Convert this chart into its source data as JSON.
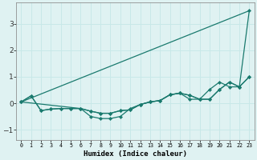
{
  "xlabel": "Humidex (Indice chaleur)",
  "bg_color": "#dff2f2",
  "grid_color": "#c8e8e8",
  "line_color": "#1a7a6e",
  "xlim": [
    -0.5,
    23.5
  ],
  "ylim": [
    -1.4,
    3.8
  ],
  "yticks": [
    -1,
    0,
    1,
    2,
    3
  ],
  "xtick_labels": [
    "0",
    "1",
    "2",
    "3",
    "4",
    "5",
    "6",
    "7",
    "8",
    "9",
    "10",
    "11",
    "12",
    "13",
    "14",
    "15",
    "16",
    "17",
    "18",
    "19",
    "20",
    "21",
    "22",
    "23"
  ],
  "series1_x": [
    0,
    1,
    2,
    3,
    4,
    5,
    6,
    7,
    8,
    9,
    10,
    11,
    12,
    13,
    14,
    15,
    16,
    17,
    18,
    19,
    20,
    21,
    22,
    23
  ],
  "series1_y": [
    0.05,
    0.28,
    -0.28,
    -0.22,
    -0.2,
    -0.2,
    -0.2,
    -0.3,
    -0.38,
    -0.38,
    -0.28,
    -0.25,
    -0.05,
    0.05,
    0.1,
    0.32,
    0.38,
    0.3,
    0.15,
    0.15,
    0.52,
    0.8,
    0.62,
    1.0
  ],
  "series2_x": [
    0,
    1,
    2,
    3,
    4,
    5,
    6,
    7,
    8,
    9,
    10,
    11,
    12,
    13,
    14,
    15,
    16,
    17,
    18,
    19,
    20,
    21,
    22,
    23
  ],
  "series2_y": [
    0.05,
    0.28,
    -0.28,
    -0.22,
    -0.2,
    -0.2,
    -0.2,
    -0.5,
    -0.58,
    -0.58,
    -0.5,
    -0.2,
    -0.05,
    0.05,
    0.1,
    0.32,
    0.38,
    0.15,
    0.15,
    0.52,
    0.8,
    0.62,
    0.62,
    1.0
  ],
  "series3_x": [
    0,
    23
  ],
  "series3_y": [
    0.05,
    3.5
  ],
  "series4_x": [
    0,
    6,
    7,
    8,
    9,
    10,
    11,
    12,
    13,
    14,
    15,
    16,
    17,
    18,
    19,
    20,
    21,
    22,
    23
  ],
  "series4_y": [
    0.05,
    -0.2,
    -0.3,
    -0.38,
    -0.38,
    -0.28,
    -0.25,
    -0.05,
    0.05,
    0.1,
    0.32,
    0.38,
    0.3,
    0.15,
    0.15,
    0.52,
    0.8,
    0.62,
    3.5
  ]
}
